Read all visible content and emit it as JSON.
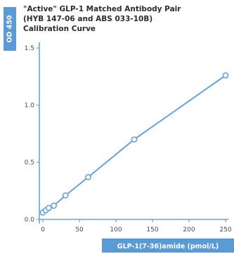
{
  "chart_data": {
    "type": "line",
    "title_lines": [
      "\"Active\" GLP-1 Matched Antibody Pair",
      "(HYB 147-06 and ABS 033-10B)",
      "Calibration Curve"
    ],
    "xlabel": "GLP-1(7-36)amide (pmol/L)",
    "ylabel": "OD 450",
    "xlim": [
      0,
      250
    ],
    "ylim": [
      0,
      1.5
    ],
    "x_ticks": [
      "0",
      "50",
      "100",
      "150",
      "200",
      "250"
    ],
    "y_ticks": [
      "0.0",
      "0.5",
      "1.0",
      "1.5"
    ],
    "grid": false,
    "legend": "none",
    "series": [
      {
        "x": [
          0,
          4,
          8,
          15,
          31,
          62,
          125,
          250
        ],
        "y": [
          0.06,
          0.08,
          0.1,
          0.12,
          0.21,
          0.37,
          0.7,
          1.26
        ]
      }
    ],
    "colors": {
      "line": "#6aa2d3",
      "marker_edge": "#6aa2d3",
      "marker_fill": "#ffffff",
      "axis": "#6aa2d3",
      "label_bg": "#5b9bd5",
      "label_text": "#ffffff",
      "tick_text": "#4a4a4a",
      "title_text": "#2c2c2c"
    }
  }
}
